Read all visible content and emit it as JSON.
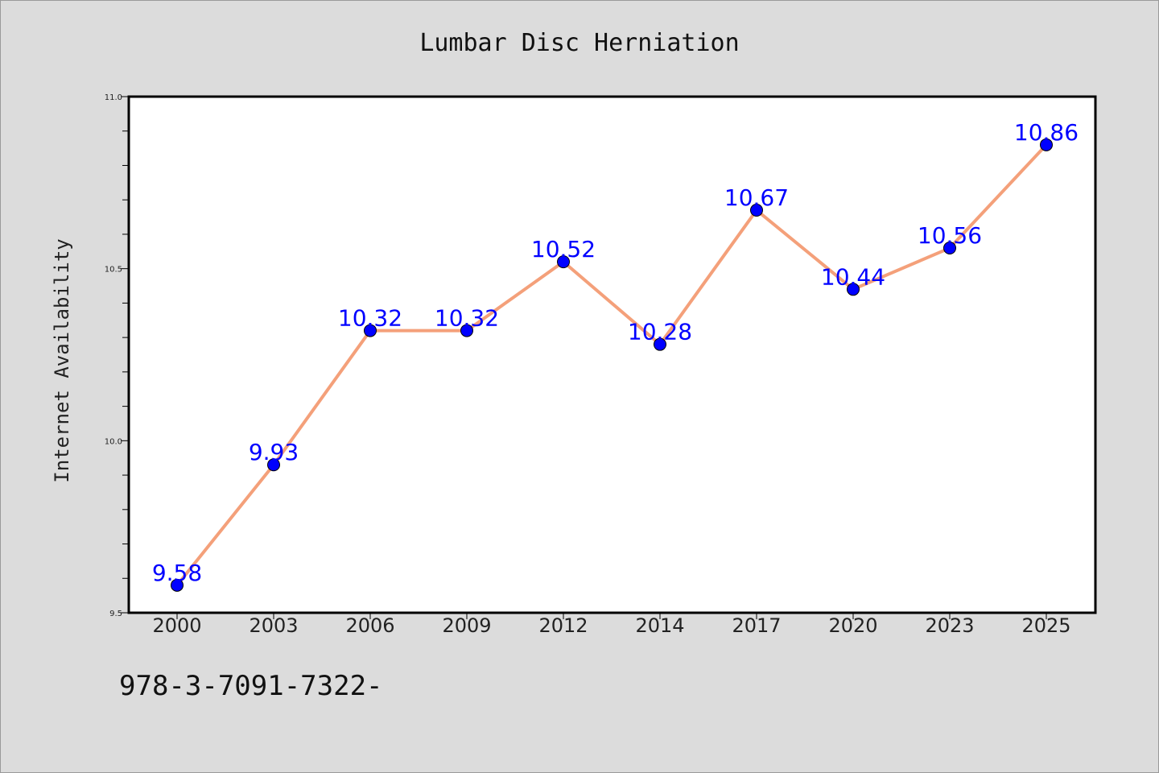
{
  "chart_data": {
    "type": "line",
    "title": "Lumbar Disc Herniation",
    "xlabel": "",
    "ylabel": "Internet Availability",
    "categories": [
      "2000",
      "2003",
      "2006",
      "2009",
      "2012",
      "2014",
      "2017",
      "2020",
      "2023",
      "2025"
    ],
    "series": [
      {
        "values": [
          9.58,
          9.93,
          10.32,
          10.32,
          10.52,
          10.28,
          10.67,
          10.44,
          10.56,
          10.86
        ],
        "data_labels": [
          "9.58",
          "9.93",
          "10.32",
          "10.32",
          "10.52",
          "10.28",
          "10.67",
          "10.44",
          "10.56",
          "10.86"
        ]
      }
    ],
    "ylim": [
      9.5,
      11.0
    ],
    "yticks": [
      9.5,
      10.0,
      10.5,
      11.0
    ],
    "ytick_labels": [
      "9.5",
      "10.0",
      "10.5",
      "11.0"
    ],
    "grid": false,
    "colors": {
      "line": "#f4a07a",
      "marker": "#0000ff",
      "label": "#0000ff",
      "background": "#dcdcdc",
      "plot_background": "#ffffff"
    }
  },
  "footer": {
    "code_text": "978-3-7091-7322-"
  }
}
